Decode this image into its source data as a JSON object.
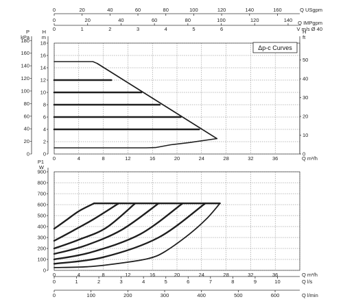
{
  "legend_label": "Δp-c Curves",
  "chart_data": [
    {
      "type": "line",
      "legend": "Δp-c Curves",
      "grid": true,
      "x_axis": {
        "unit": "Q m³/h",
        "range": [
          0,
          40
        ],
        "ticks": [
          0,
          4,
          8,
          12,
          16,
          20,
          24,
          28,
          32,
          36
        ]
      },
      "top_axes": [
        {
          "unit": "Q USgpm",
          "range": [
            0,
            176
          ],
          "ticks": [
            0,
            20,
            40,
            60,
            80,
            100,
            120,
            140,
            160
          ]
        },
        {
          "unit": "Q IMPgpm",
          "range": [
            0,
            147
          ],
          "ticks": [
            0,
            20,
            40,
            60,
            80,
            100,
            120,
            140
          ]
        },
        {
          "unit": "V m/s Ø 40",
          "range": [
            0,
            8.8
          ],
          "ticks": [
            0,
            1,
            2,
            3,
            4,
            5,
            6
          ]
        }
      ],
      "y_axis": {
        "unit": "H m",
        "range": [
          0,
          18
        ],
        "ticks": [
          0,
          2,
          4,
          6,
          8,
          10,
          12,
          14,
          16,
          18
        ]
      },
      "y_axis_left_outer": {
        "unit": "P kPa",
        "range": [
          0,
          176
        ],
        "ticks": [
          0,
          20,
          40,
          60,
          80,
          100,
          120,
          140,
          160,
          180
        ]
      },
      "y_axis_right": {
        "unit": "H ft",
        "range": [
          0,
          59
        ],
        "ticks": [
          0,
          10,
          20,
          30,
          40,
          50
        ]
      },
      "series": [
        {
          "points": [
            [
              0,
              15
            ],
            [
              6.3,
              15
            ],
            [
              7,
              14.7
            ],
            [
              26.5,
              2.5
            ]
          ]
        },
        {
          "points": [
            [
              0,
              12
            ],
            [
              9.3,
              12
            ]
          ]
        },
        {
          "points": [
            [
              0,
              10
            ],
            [
              14.2,
              10
            ]
          ]
        },
        {
          "points": [
            [
              0,
              8
            ],
            [
              17.2,
              8
            ]
          ]
        },
        {
          "points": [
            [
              0,
              6
            ],
            [
              20.6,
              6
            ]
          ]
        },
        {
          "points": [
            [
              0,
              4
            ],
            [
              23.6,
              4
            ]
          ]
        },
        {
          "points": [
            [
              0,
              1
            ],
            [
              15,
              1
            ],
            [
              16.5,
              1.05
            ],
            [
              19,
              1.5
            ],
            [
              22,
              1.85
            ],
            [
              26.5,
              2.5
            ]
          ]
        }
      ]
    },
    {
      "type": "line",
      "grid": true,
      "x_axis": {
        "unit": "Q m³/h",
        "range": [
          0,
          40
        ],
        "ticks": [
          0,
          4,
          8,
          12,
          16,
          20,
          24,
          28,
          32,
          36
        ]
      },
      "bottom_axes": [
        {
          "unit": "Q l/s",
          "range": [
            0,
            11
          ],
          "ticks": [
            0,
            1,
            2,
            3,
            4,
            5,
            6,
            7,
            8,
            9,
            10
          ]
        },
        {
          "unit": "Q l/min",
          "range": [
            0,
            667
          ],
          "ticks": [
            0,
            100,
            200,
            300,
            400,
            500,
            600
          ]
        }
      ],
      "y_axis": {
        "unit": "P1 W",
        "range": [
          0,
          900
        ],
        "ticks": [
          0,
          100,
          200,
          300,
          400,
          500,
          600,
          700,
          800,
          900
        ]
      },
      "series": [
        {
          "points": [
            [
              0,
              380
            ],
            [
              2,
              460
            ],
            [
              4,
              540
            ],
            [
              6.5,
              612
            ]
          ]
        },
        {
          "points": [
            [
              0,
              270
            ],
            [
              3,
              360
            ],
            [
              6.5,
              470
            ],
            [
              10.5,
              612
            ]
          ]
        },
        {
          "points": [
            [
              0,
              200
            ],
            [
              4,
              280
            ],
            [
              8.5,
              390
            ],
            [
              13.2,
              612
            ]
          ]
        },
        {
          "points": [
            [
              0,
              150
            ],
            [
              5,
              225
            ],
            [
              11,
              370
            ],
            [
              17,
              612
            ]
          ]
        },
        {
          "points": [
            [
              0,
              100
            ],
            [
              6,
              165
            ],
            [
              14,
              330
            ],
            [
              20.9,
              612
            ]
          ]
        },
        {
          "points": [
            [
              0,
              60
            ],
            [
              8,
              120
            ],
            [
              17,
              300
            ],
            [
              24.6,
              612
            ]
          ]
        },
        {
          "points": [
            [
              0,
              25
            ],
            [
              6,
              35
            ],
            [
              12,
              75
            ],
            [
              15.5,
              110
            ],
            [
              18,
              170
            ],
            [
              22,
              330
            ],
            [
              24.8,
              470
            ],
            [
              27,
              612
            ]
          ]
        }
      ],
      "cap_line": {
        "x": [
          6.5,
          27
        ],
        "y": 612
      }
    }
  ]
}
